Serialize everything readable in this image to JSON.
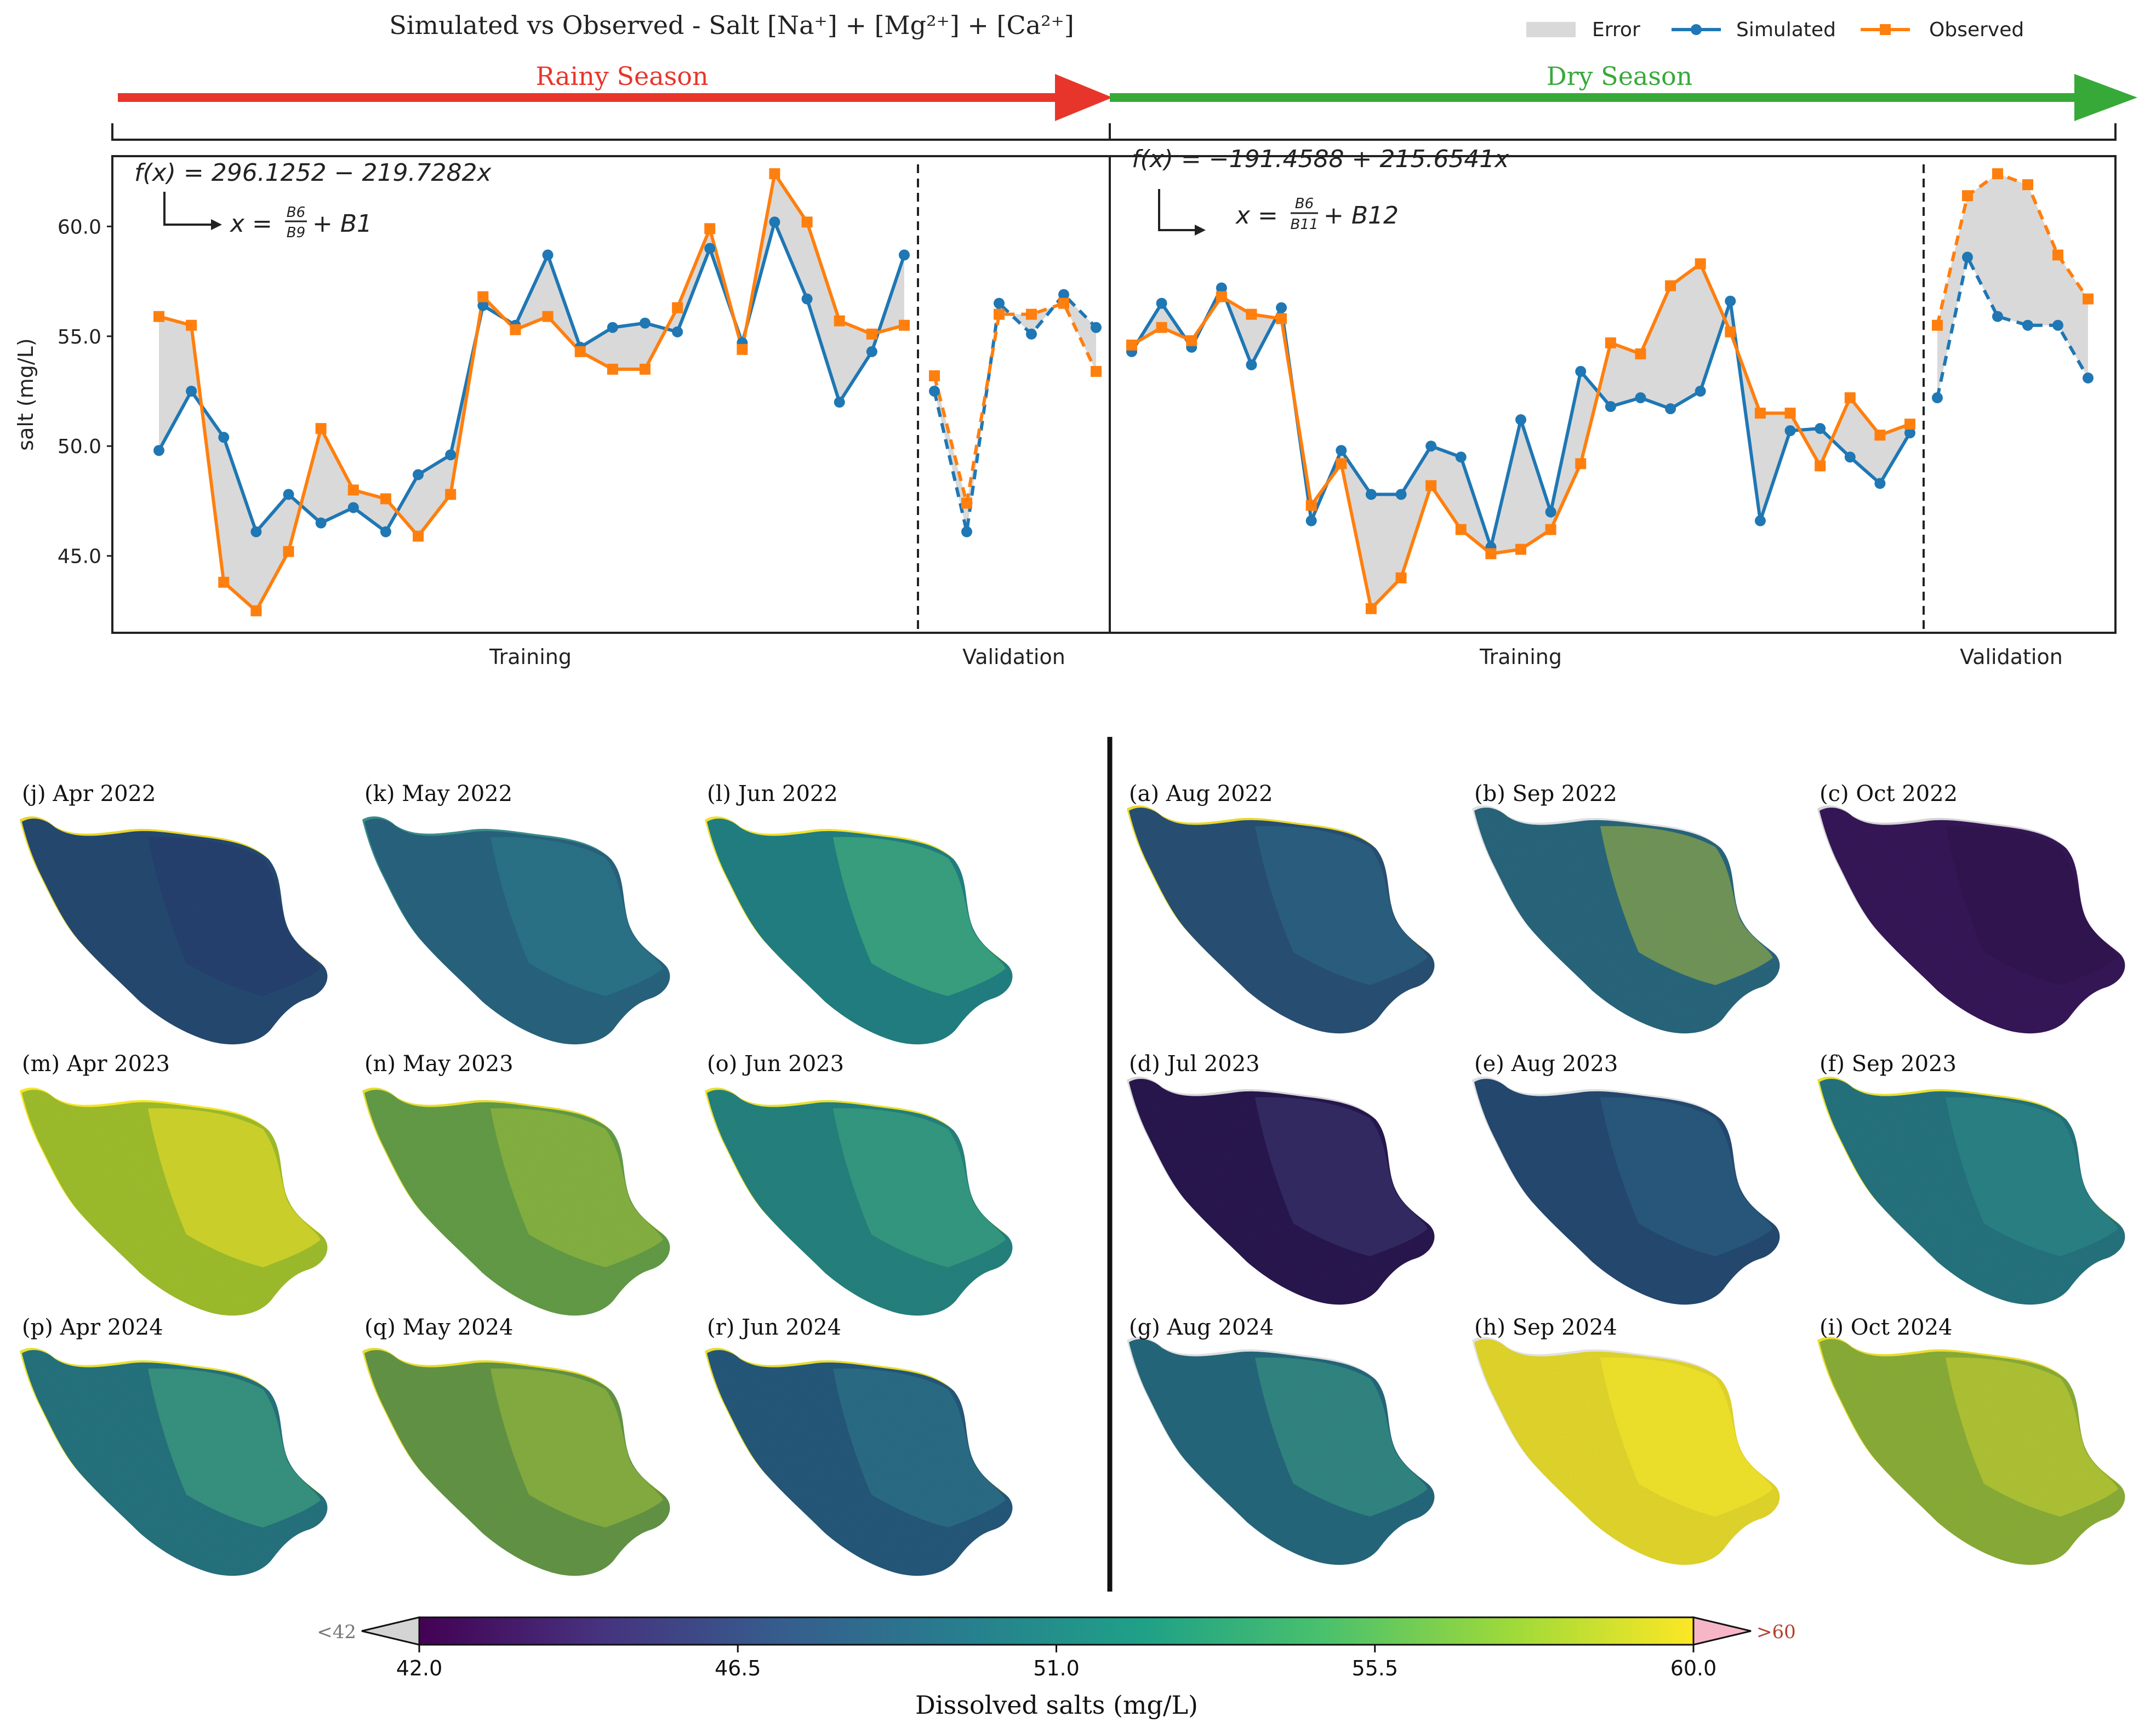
{
  "chart_data": {
    "type": "line",
    "title": "Simulated vs Observed - Salt [Na⁺] + [Mg²⁺] + [Ca²⁺]",
    "legend": {
      "placement": "top-right",
      "entries": [
        {
          "label": "Error",
          "color": "#d9d9d9"
        },
        {
          "label": "Simulated",
          "color": "#1f77b4"
        },
        {
          "label": "Observed",
          "color": "#ff7f0e"
        }
      ]
    },
    "ylabel": "salt (mg/L)",
    "ylim": [
      41.5,
      63.2
    ],
    "yticks": [
      "60.0",
      "55.0",
      "50.0",
      "45.0"
    ],
    "seasons": [
      {
        "name": "Rainy Season",
        "color": "#e8352b",
        "equation": "f(x) = 296.1252 − 219.7282x",
        "x_def": "x = B6/B9 + B1",
        "x_def_parts": {
          "prefix": "x =",
          "num": "B6",
          "den": "B9",
          "suffix": "+ B1"
        },
        "training_label": "Training",
        "validation_label": "Validation",
        "training": {
          "simulated": [
            49.8,
            52.5,
            50.4,
            46.1,
            47.8,
            46.5,
            47.2,
            46.1,
            48.7,
            49.6,
            56.4,
            55.5,
            58.7,
            54.5,
            55.4,
            55.6,
            55.2,
            59.0,
            54.7,
            60.2,
            56.7,
            52.0,
            54.3,
            58.7
          ],
          "observed": [
            55.9,
            55.5,
            43.8,
            42.5,
            45.2,
            50.8,
            48.0,
            47.6,
            45.9,
            47.8,
            56.8,
            55.3,
            55.9,
            54.3,
            53.5,
            53.5,
            56.3,
            59.9,
            54.4,
            62.4,
            60.2,
            55.7,
            55.1,
            55.5
          ]
        },
        "validation": {
          "simulated": [
            52.5,
            46.1,
            56.5,
            55.1,
            56.9,
            55.4
          ],
          "observed": [
            53.2,
            47.4,
            56.0,
            56.0,
            56.5,
            53.4
          ]
        }
      },
      {
        "name": "Dry Season",
        "color": "#37a939",
        "equation": "f(x) = −191.4588 + 215.6541x",
        "x_def": "x = B6/B11 + B12",
        "x_def_parts": {
          "prefix": "x =",
          "num": "B6",
          "den": "B11",
          "suffix": "+ B12"
        },
        "training_label": "Training",
        "validation_label": "Validation",
        "training": {
          "simulated": [
            54.3,
            56.5,
            54.5,
            57.2,
            53.7,
            56.3,
            46.6,
            49.8,
            47.8,
            47.8,
            50.0,
            49.5,
            45.4,
            51.2,
            47.0,
            53.4,
            51.8,
            52.2,
            51.7,
            52.5,
            56.6,
            46.6,
            50.7,
            50.8,
            49.5,
            48.3,
            50.6
          ],
          "observed": [
            54.6,
            55.4,
            54.8,
            56.8,
            56.0,
            55.8,
            47.3,
            49.2,
            42.6,
            44.0,
            48.2,
            46.2,
            45.1,
            45.3,
            46.2,
            49.2,
            54.7,
            54.2,
            57.3,
            58.3,
            55.2,
            51.5,
            51.5,
            49.1,
            52.2,
            50.5,
            51.0
          ]
        },
        "validation": {
          "simulated": [
            52.2,
            58.6,
            55.9,
            55.5,
            55.5,
            53.1
          ],
          "observed": [
            55.5,
            61.4,
            62.4,
            61.9,
            58.7,
            56.7
          ]
        }
      }
    ],
    "maps": {
      "rainy": [
        {
          "label": "(j) Apr 2022",
          "base": "#2c4f78",
          "accent": "#26386b",
          "edge": "#e8d52a"
        },
        {
          "label": "(k) May 2022",
          "base": "#2e6a86",
          "accent": "#2b7c8c",
          "edge": "#3a8c8a"
        },
        {
          "label": "(l) Jun 2022",
          "base": "#27888a",
          "accent": "#4ab87a",
          "edge": "#f0e030"
        },
        {
          "label": "(m) Apr 2023",
          "base": "#a8c930",
          "accent": "#f0e02a",
          "edge": "#f5e52a"
        },
        {
          "label": "(n) May 2023",
          "base": "#6aa64e",
          "accent": "#9cbe3a",
          "edge": "#e4dc30"
        },
        {
          "label": "(o) Jun 2023",
          "base": "#2a8a86",
          "accent": "#3fa880",
          "edge": "#e8e030"
        },
        {
          "label": "(p) Apr 2024",
          "base": "#2a7a86",
          "accent": "#45a87e",
          "edge": "#e8e030"
        },
        {
          "label": "(q) May 2024",
          "base": "#6b9e4c",
          "accent": "#9cbd3c",
          "edge": "#e6dc30"
        },
        {
          "label": "(r) Jun 2024",
          "base": "#2b5f82",
          "accent": "#2e7a8a",
          "edge": "#e6dc30"
        }
      ],
      "dry": [
        {
          "label": "(a) Aug 2022",
          "base": "#2d567c",
          "accent": "#2b6a86",
          "edge": "#e8d830"
        },
        {
          "label": "(b) Sep 2022",
          "base": "#2f6d84",
          "accent": "#a8b83a",
          "edge": "#e0e0e0"
        },
        {
          "label": "(c) Oct 2022",
          "base": "#3a1e5e",
          "accent": "#2c1447",
          "edge": "#d4d4d4"
        },
        {
          "label": "(d) Jul 2023",
          "base": "#2e1d55",
          "accent": "#3a3a73",
          "edge": "#d8d8d8"
        },
        {
          "label": "(e) Aug 2023",
          "base": "#2a4f78",
          "accent": "#2a6384",
          "edge": "#e0e0e0"
        },
        {
          "label": "(f) Sep 2023",
          "base": "#2a7a86",
          "accent": "#2e8a86",
          "edge": "#e8e030"
        },
        {
          "label": "(g) Aug 2024",
          "base": "#2a6e84",
          "accent": "#3a9a84",
          "edge": "#e0e0e0"
        },
        {
          "label": "(h) Sep 2024",
          "base": "#f0e330",
          "accent": "#f6ea2a",
          "edge": "#e2e2e2"
        },
        {
          "label": "(i) Oct 2024",
          "base": "#93b83c",
          "accent": "#c8d032",
          "edge": "#e8dc30"
        }
      ]
    },
    "colorbar": {
      "label": "Dissolved salts (mg/L)",
      "ticks": [
        "42.0",
        "46.5",
        "51.0",
        "55.5",
        "60.0"
      ],
      "under_label": "<42",
      "over_label": ">60",
      "under_color": "#d4d4d4",
      "over_color": "#f7b6c8",
      "colormap": "viridis"
    }
  }
}
